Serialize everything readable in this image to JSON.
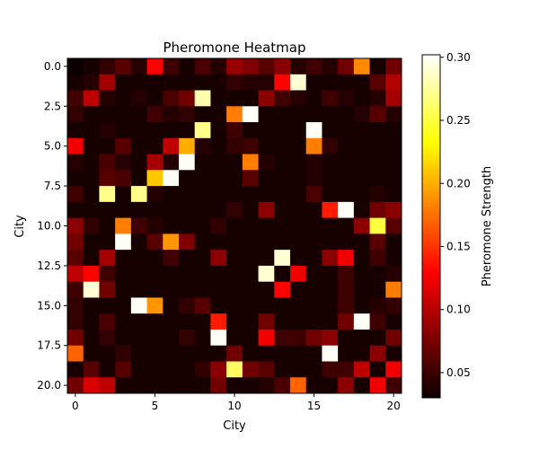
{
  "chart_data": {
    "type": "heatmap",
    "title": "Pheromone Heatmap",
    "xlabel": "City",
    "ylabel": "City",
    "colorbar_label": "Pheromone Strength",
    "colormap": "hot",
    "vmin": 0.03,
    "vmax": 0.302,
    "x_ticks": [
      0,
      5,
      10,
      15,
      20
    ],
    "x_tick_labels": [
      "0",
      "5",
      "10",
      "15",
      "20"
    ],
    "y_ticks": [
      0,
      2.5,
      5,
      7.5,
      10,
      12.5,
      15,
      17.5,
      20
    ],
    "y_tick_labels": [
      "0.0",
      "2.5",
      "5.0",
      "7.5",
      "10.0",
      "12.5",
      "15.0",
      "17.5",
      "20.0"
    ],
    "colorbar_ticks": [
      0.05,
      0.1,
      0.15,
      0.2,
      0.25,
      0.3
    ],
    "colorbar_tick_labels": [
      "0.05",
      "0.10",
      "0.15",
      "0.20",
      "0.25",
      "0.30"
    ],
    "rows": 21,
    "cols": 21,
    "values": [
      [
        0.03,
        0.035,
        0.045,
        0.06,
        0.04,
        0.125,
        0.05,
        0.035,
        0.055,
        0.04,
        0.085,
        0.075,
        0.06,
        0.08,
        0.04,
        0.05,
        0.04,
        0.07,
        0.185,
        0.035,
        0.07
      ],
      [
        0.035,
        0.04,
        0.09,
        0.035,
        0.035,
        0.035,
        0.035,
        0.035,
        0.035,
        0.035,
        0.045,
        0.04,
        0.04,
        0.13,
        0.29,
        0.035,
        0.035,
        0.035,
        0.035,
        0.06,
        0.095
      ],
      [
        0.05,
        0.1,
        0.04,
        0.035,
        0.04,
        0.035,
        0.055,
        0.07,
        0.28,
        0.035,
        0.035,
        0.035,
        0.08,
        0.05,
        0.04,
        0.035,
        0.05,
        0.04,
        0.035,
        0.04,
        0.09
      ],
      [
        0.045,
        0.035,
        0.035,
        0.035,
        0.035,
        0.05,
        0.04,
        0.045,
        0.035,
        0.035,
        0.18,
        0.3,
        0.035,
        0.035,
        0.035,
        0.035,
        0.035,
        0.035,
        0.04,
        0.06,
        0.04
      ],
      [
        0.035,
        0.035,
        0.04,
        0.035,
        0.035,
        0.035,
        0.035,
        0.035,
        0.27,
        0.035,
        0.05,
        0.035,
        0.035,
        0.035,
        0.035,
        0.3,
        0.035,
        0.035,
        0.035,
        0.035,
        0.035
      ],
      [
        0.12,
        0.035,
        0.035,
        0.06,
        0.035,
        0.035,
        0.1,
        0.2,
        0.04,
        0.035,
        0.045,
        0.05,
        0.035,
        0.035,
        0.035,
        0.18,
        0.045,
        0.035,
        0.035,
        0.035,
        0.035
      ],
      [
        0.04,
        0.035,
        0.055,
        0.04,
        0.035,
        0.09,
        0.04,
        0.3,
        0.035,
        0.035,
        0.035,
        0.18,
        0.04,
        0.035,
        0.035,
        0.04,
        0.035,
        0.035,
        0.035,
        0.035,
        0.035
      ],
      [
        0.035,
        0.035,
        0.06,
        0.055,
        0.035,
        0.21,
        0.3,
        0.035,
        0.035,
        0.035,
        0.035,
        0.06,
        0.035,
        0.035,
        0.035,
        0.04,
        0.035,
        0.035,
        0.035,
        0.035,
        0.035
      ],
      [
        0.05,
        0.035,
        0.27,
        0.035,
        0.27,
        0.04,
        0.035,
        0.035,
        0.035,
        0.035,
        0.035,
        0.035,
        0.035,
        0.035,
        0.035,
        0.055,
        0.035,
        0.035,
        0.035,
        0.04,
        0.035
      ],
      [
        0.035,
        0.035,
        0.035,
        0.035,
        0.035,
        0.035,
        0.035,
        0.035,
        0.035,
        0.035,
        0.045,
        0.035,
        0.08,
        0.035,
        0.035,
        0.035,
        0.14,
        0.3,
        0.035,
        0.07,
        0.08
      ],
      [
        0.08,
        0.045,
        0.035,
        0.18,
        0.05,
        0.04,
        0.035,
        0.035,
        0.035,
        0.045,
        0.035,
        0.035,
        0.035,
        0.035,
        0.035,
        0.035,
        0.035,
        0.035,
        0.08,
        0.25,
        0.06
      ],
      [
        0.07,
        0.035,
        0.035,
        0.3,
        0.035,
        0.06,
        0.19,
        0.075,
        0.035,
        0.035,
        0.035,
        0.035,
        0.035,
        0.035,
        0.035,
        0.035,
        0.035,
        0.035,
        0.035,
        0.06,
        0.035
      ],
      [
        0.06,
        0.035,
        0.09,
        0.035,
        0.035,
        0.035,
        0.05,
        0.035,
        0.035,
        0.08,
        0.035,
        0.035,
        0.035,
        0.29,
        0.035,
        0.035,
        0.08,
        0.12,
        0.035,
        0.05,
        0.035
      ],
      [
        0.1,
        0.13,
        0.05,
        0.035,
        0.035,
        0.035,
        0.035,
        0.035,
        0.035,
        0.035,
        0.035,
        0.035,
        0.29,
        0.035,
        0.12,
        0.035,
        0.035,
        0.05,
        0.035,
        0.035,
        0.04
      ],
      [
        0.05,
        0.29,
        0.07,
        0.035,
        0.035,
        0.035,
        0.035,
        0.035,
        0.035,
        0.035,
        0.035,
        0.035,
        0.035,
        0.13,
        0.035,
        0.035,
        0.035,
        0.05,
        0.035,
        0.035,
        0.18
      ],
      [
        0.045,
        0.035,
        0.035,
        0.035,
        0.3,
        0.19,
        0.035,
        0.045,
        0.06,
        0.035,
        0.035,
        0.035,
        0.035,
        0.035,
        0.035,
        0.035,
        0.035,
        0.05,
        0.035,
        0.04,
        0.045
      ],
      [
        0.045,
        0.035,
        0.055,
        0.035,
        0.035,
        0.035,
        0.035,
        0.035,
        0.035,
        0.14,
        0.035,
        0.035,
        0.07,
        0.035,
        0.035,
        0.035,
        0.035,
        0.07,
        0.3,
        0.05,
        0.035
      ],
      [
        0.07,
        0.035,
        0.045,
        0.035,
        0.035,
        0.035,
        0.035,
        0.045,
        0.035,
        0.3,
        0.035,
        0.035,
        0.12,
        0.05,
        0.05,
        0.07,
        0.08,
        0.035,
        0.035,
        0.035,
        0.07
      ],
      [
        0.17,
        0.035,
        0.035,
        0.045,
        0.035,
        0.035,
        0.035,
        0.035,
        0.035,
        0.035,
        0.07,
        0.035,
        0.035,
        0.035,
        0.035,
        0.035,
        0.3,
        0.035,
        0.035,
        0.08,
        0.035
      ],
      [
        0.035,
        0.06,
        0.035,
        0.06,
        0.035,
        0.035,
        0.035,
        0.035,
        0.045,
        0.08,
        0.26,
        0.07,
        0.06,
        0.035,
        0.035,
        0.035,
        0.05,
        0.05,
        0.1,
        0.035,
        0.12
      ],
      [
        0.07,
        0.11,
        0.1,
        0.035,
        0.035,
        0.035,
        0.035,
        0.035,
        0.035,
        0.07,
        0.035,
        0.035,
        0.04,
        0.055,
        0.17,
        0.035,
        0.035,
        0.08,
        0.035,
        0.12,
        0.05
      ]
    ]
  }
}
